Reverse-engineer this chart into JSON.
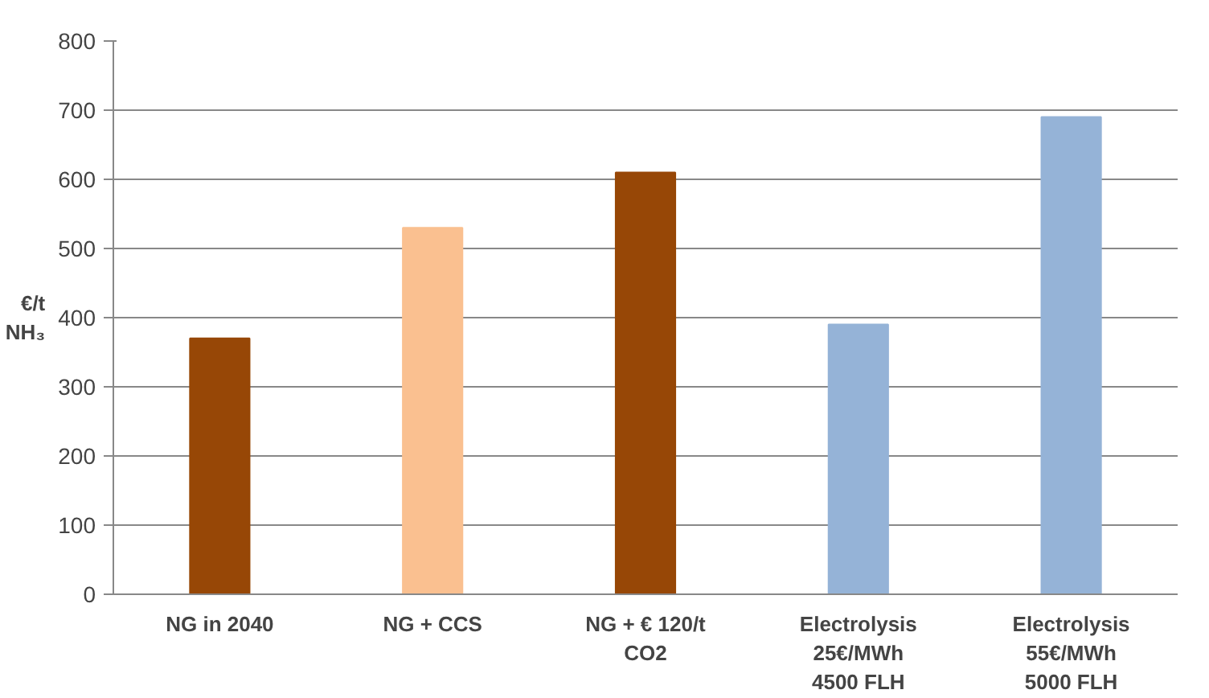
{
  "chart_data": {
    "type": "bar",
    "ylabel": "€/t\nNH₃",
    "categories": [
      "NG in 2040",
      "NG + CCS",
      "NG + € 120/t\nCO2",
      "Electrolysis\n25€/MWh\n4500 FLH",
      "Electrolysis\n55€/MWh\n5000 FLH"
    ],
    "values": [
      370,
      530,
      610,
      390,
      690
    ],
    "colors": [
      "#974706",
      "#fac090",
      "#974706",
      "#95b3d7",
      "#95b3d7"
    ],
    "ylim": [
      0,
      800
    ],
    "yticks": [
      0,
      100,
      200,
      300,
      400,
      500,
      600,
      700,
      800
    ],
    "grid": "y"
  }
}
